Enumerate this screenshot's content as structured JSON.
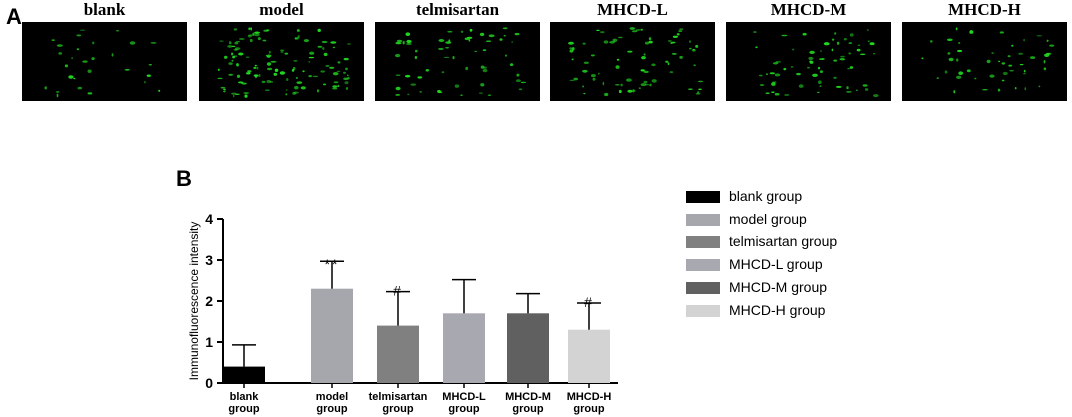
{
  "panel_a": {
    "letter": "A",
    "images": [
      {
        "label": "blank",
        "density": 28
      },
      {
        "label": "model",
        "density": 120
      },
      {
        "label": "telmisartan",
        "density": 60
      },
      {
        "label": "MHCD-L",
        "density": 75
      },
      {
        "label": "MHCD-M",
        "density": 65
      },
      {
        "label": "MHCD-H",
        "density": 48
      }
    ],
    "stain_color": "#22dd22"
  },
  "panel_b": {
    "letter": "B"
  },
  "chart_data": {
    "type": "bar",
    "ylabel": "Immunofluorescence intensity",
    "xlabel": "",
    "ylim": [
      0,
      4
    ],
    "yticks": [
      "0",
      "1",
      "2",
      "3",
      "4"
    ],
    "categories": [
      [
        "blank",
        "group"
      ],
      [
        "model",
        "group"
      ],
      [
        "telmisartan",
        "group"
      ],
      [
        "MHCD-L",
        "group"
      ],
      [
        "MHCD-M",
        "group"
      ],
      [
        "MHCD-H",
        "group"
      ]
    ],
    "values": [
      0.4,
      2.3,
      1.4,
      1.7,
      1.7,
      1.3
    ],
    "errors": [
      0.53,
      0.67,
      0.83,
      0.82,
      0.48,
      0.65
    ],
    "annotations": [
      "",
      "**",
      "#",
      "",
      "",
      "#"
    ],
    "colors": [
      "#000000",
      "#a6a6ad",
      "#808080",
      "#a8a8b0",
      "#606060",
      "#d3d3d3"
    ],
    "legend": [
      {
        "label": "blank group",
        "color": "#000000"
      },
      {
        "label": "model group",
        "color": "#a6a6ad"
      },
      {
        "label": "telmisartan group",
        "color": "#808080"
      },
      {
        "label": "MHCD-L group",
        "color": "#a8a8b0"
      },
      {
        "label": "MHCD-M group",
        "color": "#606060"
      },
      {
        "label": "MHCD-H group",
        "color": "#d3d3d3"
      }
    ],
    "legend_position": "right"
  }
}
